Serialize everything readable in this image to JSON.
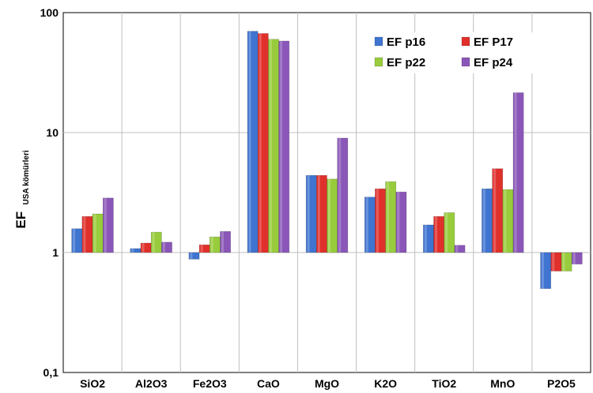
{
  "chart_data": {
    "type": "bar",
    "yscale": "log",
    "ylim": [
      0.1,
      100
    ],
    "baseline": 1,
    "grid": {
      "vertical_separators": true,
      "horizontal_major": true
    },
    "ylabel": {
      "main": "EF",
      "sub": "USA kömürleri"
    },
    "yticks": [
      {
        "value": 0.1,
        "label": "0,1"
      },
      {
        "value": 1,
        "label": "1"
      },
      {
        "value": 10,
        "label": "10"
      },
      {
        "value": 100,
        "label": "100"
      }
    ],
    "categories": [
      "SiO2",
      "Al2O3",
      "Fe2O3",
      "CaO",
      "MgO",
      "K2O",
      "TiO2",
      "MnO",
      "P2O5"
    ],
    "legend_position": "top-right",
    "series": [
      {
        "name": "EF p16",
        "color": "#3f74d0",
        "values": [
          1.58,
          1.08,
          0.88,
          70,
          4.4,
          2.9,
          1.7,
          3.4,
          0.5
        ]
      },
      {
        "name": "EF P17",
        "color": "#e0302c",
        "values": [
          2.0,
          1.2,
          1.16,
          67,
          4.4,
          3.4,
          2.0,
          5.0,
          0.7
        ]
      },
      {
        "name": "EF p22",
        "color": "#98cc3c",
        "values": [
          2.1,
          1.48,
          1.35,
          60,
          4.1,
          3.9,
          2.15,
          3.35,
          0.7
        ]
      },
      {
        "name": "EF p24",
        "color": "#8a57b8",
        "values": [
          2.85,
          1.22,
          1.5,
          58,
          9.0,
          3.2,
          1.15,
          21.5,
          0.8
        ]
      }
    ]
  }
}
